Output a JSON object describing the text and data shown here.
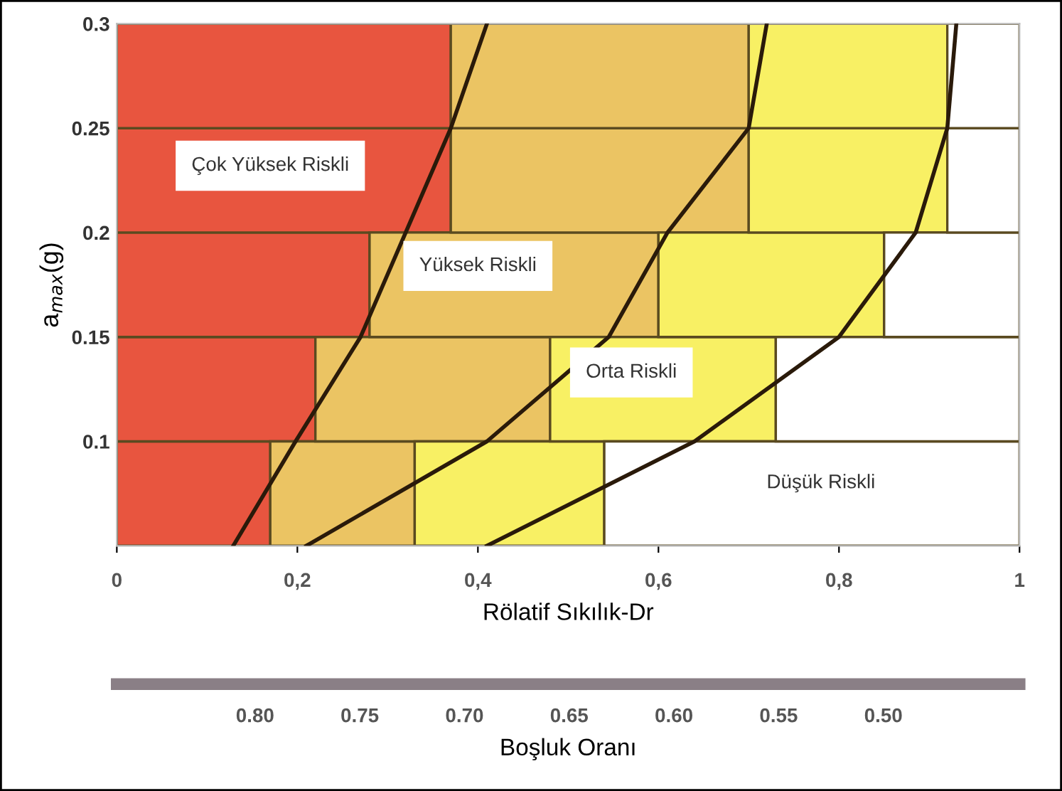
{
  "chart_data": {
    "type": "bar",
    "orientation": "horizontal",
    "stacked": true,
    "xlabel": "Rölatif Sıkılık-Dr",
    "ylabel": "a$_{max}$(g)",
    "x2label": "Boşluk Oranı",
    "x": [
      0.075,
      0.125,
      0.175,
      0.225,
      0.275
    ],
    "series": [
      {
        "color": "#e8553f",
        "values": [
          0.17,
          0.22,
          0.28,
          0.37,
          0.37
        ]
      },
      {
        "color": "#ebc463",
        "values": [
          0.16,
          0.26,
          0.32,
          0.33,
          0.33
        ]
      },
      {
        "color": "#f8f064",
        "values": [
          0.21,
          0.25,
          0.25,
          0.22,
          0.22
        ]
      },
      {
        "color": "#ffffff",
        "values": [
          0.46,
          0.27,
          0.15,
          0.08,
          0.08
        ]
      },
      {
        "type": "line",
        "color": "#2a1a0a",
        "values": [
          0.129,
          0.198,
          0.27,
          0.32,
          0.37,
          0.41
        ],
        "x": [
          0.05,
          0.1,
          0.15,
          0.2,
          0.25,
          0.3
        ]
      },
      {
        "type": "line",
        "color": "#2a1a0a",
        "values": [
          0.21,
          0.41,
          0.545,
          0.61,
          0.7,
          0.72
        ],
        "x": [
          0.05,
          0.1,
          0.15,
          0.2,
          0.25,
          0.3
        ]
      },
      {
        "type": "line",
        "color": "#2a1a0a",
        "values": [
          0.41,
          0.64,
          0.8,
          0.885,
          0.92,
          0.93
        ],
        "x": [
          0.05,
          0.1,
          0.15,
          0.2,
          0.25,
          0.3
        ]
      }
    ],
    "xlim": [
      0,
      1
    ],
    "xticks": [
      0,
      {
        "value": 0.2,
        "label": "0,2"
      },
      {
        "value": 0.4,
        "label": "0,4"
      },
      {
        "value": 0.6,
        "label": "0,6"
      },
      {
        "value": 0.8,
        "label": "0,8"
      },
      1
    ],
    "ylim": [
      0.05,
      0.3
    ],
    "yticks": [
      0.1,
      0.15,
      0.2,
      0.25,
      0.3
    ],
    "x2lim": [
      0.866,
      0.435
    ],
    "x2ticks": [
      {
        "value": 0.8,
        "label": "0.80"
      },
      {
        "value": 0.75,
        "label": "0.75"
      },
      {
        "value": 0.7,
        "label": "0.70"
      },
      {
        "value": 0.65,
        "label": "0.65"
      },
      {
        "value": 0.6,
        "label": "0.60"
      },
      {
        "value": 0.55,
        "label": "0.55"
      },
      {
        "value": 0.5,
        "label": "0.50"
      }
    ],
    "annotations": [
      "Çok Yüksek Riskli",
      "Yüksek Riskli",
      "Orta Riskli",
      "Düşük Riskli"
    ]
  }
}
